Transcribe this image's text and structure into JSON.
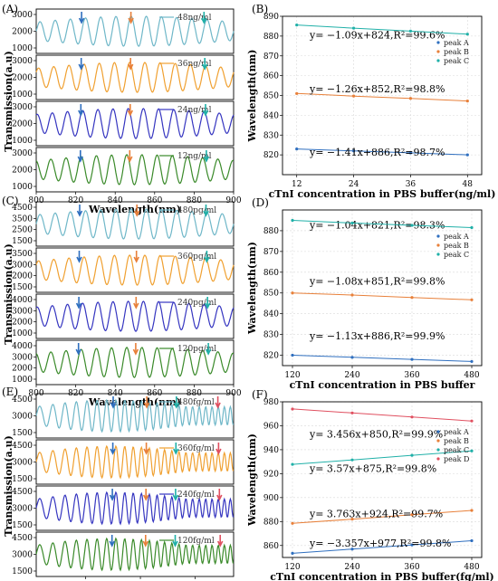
{
  "panels": [
    {
      "id": "A",
      "label": "(A)",
      "ylabel": "Transmission(a.u)",
      "xlabel": "Wavelength(nm)",
      "xticks": [
        800,
        820,
        840,
        860,
        880,
        900
      ],
      "spectra": [
        {
          "conc": "48ng/ml",
          "color": "#6fb7c8",
          "yticks": [
            1000,
            2000,
            3000
          ]
        },
        {
          "conc": "36ng/ml",
          "color": "#f0a030",
          "yticks": [
            1000,
            2000,
            3000
          ]
        },
        {
          "conc": "24ng/ml",
          "color": "#3535c0",
          "yticks": [
            1000,
            2000,
            3000
          ]
        },
        {
          "conc": "12ng/ml",
          "color": "#3a8a2a",
          "yticks": [
            1000,
            2000,
            3000
          ]
        }
      ]
    },
    {
      "id": "C",
      "label": "(C)",
      "ylabel": "Transmission(a.u)",
      "xlabel": "Wavelength(nm)",
      "xticks": [
        800,
        820,
        840,
        860,
        880,
        900
      ],
      "spectra": [
        {
          "conc": "480pg/ml",
          "color": "#6fb7c8",
          "yticks": [
            1500,
            2500,
            3500,
            4500
          ]
        },
        {
          "conc": "360pg/ml",
          "color": "#f0a030",
          "yticks": [
            1500,
            2000,
            3000,
            3500
          ]
        },
        {
          "conc": "240pg/ml",
          "color": "#3535c0",
          "yticks": [
            1000,
            2000,
            3000,
            4000
          ]
        },
        {
          "conc": "120pg/ml",
          "color": "#3a8a2a",
          "yticks": [
            1000,
            2000,
            3000,
            4000
          ]
        }
      ]
    },
    {
      "id": "E",
      "label": "(E)",
      "ylabel": "Transmission(a.u)",
      "xlabel": "Wavelength(nm)",
      "xticks": [
        850,
        900,
        950
      ],
      "spectra": [
        {
          "conc": "480fg/ml",
          "color": "#6fb7c8",
          "yticks": [
            1500,
            3000,
            4500
          ]
        },
        {
          "conc": "360fg/ml",
          "color": "#f0a030",
          "yticks": [
            1500,
            3000,
            4500
          ]
        },
        {
          "conc": "240fg/ml",
          "color": "#3535c0",
          "yticks": [
            1500,
            3000,
            4500
          ]
        },
        {
          "conc": "120fg/ml",
          "color": "#3a8a2a",
          "yticks": [
            1500,
            3000,
            4500
          ]
        }
      ]
    }
  ],
  "chart_data": [
    {
      "type": "line",
      "panel": "B",
      "xlabel": "cTnI concentration in PBS buffer(ng/ml)",
      "ylabel": "Wavelength(nm)",
      "xticks": [
        12,
        24,
        36,
        48
      ],
      "xlim": [
        9,
        51
      ],
      "ylim": [
        810,
        890
      ],
      "yticks": [
        820,
        830,
        840,
        850,
        860,
        870,
        880,
        890
      ],
      "legend_position": "right",
      "series": [
        {
          "name": "peak A",
          "color": "#2f6fbf",
          "x": [
            12,
            24,
            36,
            48
          ],
          "y": [
            823.0,
            822.0,
            821.0,
            820.0
          ],
          "equation": "y= −1.09x+824,R²=99.6%"
        },
        {
          "name": "peak B",
          "color": "#e8803a",
          "x": [
            12,
            24,
            36,
            48
          ],
          "y": [
            851.0,
            849.7,
            848.5,
            847.2
          ],
          "equation": "y= −1.26x+852,R²=98.8%"
        },
        {
          "name": "peak C",
          "color": "#20b0a8",
          "x": [
            12,
            24,
            36,
            48
          ],
          "y": [
            885.6,
            884.0,
            882.5,
            881.0
          ],
          "equation": "y= −1.41x+886,R²=98.7%"
        }
      ]
    },
    {
      "type": "line",
      "panel": "D",
      "xlabel": "cTnI concentration in PBS buffer",
      "ylabel": "Wavelength(nm)",
      "xticks": [
        120,
        240,
        360,
        480
      ],
      "xlim": [
        100,
        500
      ],
      "ylim": [
        815,
        890
      ],
      "yticks": [
        820,
        830,
        840,
        850,
        860,
        870,
        880
      ],
      "legend_position": "right",
      "series": [
        {
          "name": "peak A",
          "color": "#2f6fbf",
          "x": [
            120,
            240,
            360,
            480
          ],
          "y": [
            820.0,
            819.0,
            818.0,
            817.0
          ],
          "equation": "y= −1.04x+821,R²=98.3%"
        },
        {
          "name": "peak B",
          "color": "#e8803a",
          "x": [
            120,
            240,
            360,
            480
          ],
          "y": [
            850.0,
            849.0,
            847.8,
            846.7
          ],
          "equation": "y= −1.08x+851,R²=99.8%"
        },
        {
          "name": "peak C",
          "color": "#20b0a8",
          "x": [
            120,
            240,
            360,
            480
          ],
          "y": [
            885.0,
            883.7,
            882.6,
            881.5
          ],
          "equation": "y= −1.13x+886,R²=99.9%"
        }
      ]
    },
    {
      "type": "line",
      "panel": "F",
      "xlabel": "cTnI concentration in PBS buffer(fg/ml)",
      "ylabel": "Wavelength(nm)",
      "xticks": [
        120,
        240,
        360,
        480
      ],
      "xlim": [
        100,
        500
      ],
      "ylim": [
        850,
        980
      ],
      "yticks": [
        860,
        880,
        900,
        920,
        940,
        960,
        980
      ],
      "legend_position": "right",
      "series": [
        {
          "name": "peak A",
          "color": "#2f6fbf",
          "x": [
            120,
            240,
            360,
            480
          ],
          "y": [
            853.5,
            857.0,
            860.5,
            864.0
          ],
          "equation": "y= 3.456x+850,R²=99.9%"
        },
        {
          "name": "peak B",
          "color": "#e8803a",
          "x": [
            120,
            240,
            360,
            480
          ],
          "y": [
            878.5,
            882.0,
            885.7,
            889.3
          ],
          "equation": "y= 3.57x+875,R²=99.8%"
        },
        {
          "name": "peak C",
          "color": "#20b0a8",
          "x": [
            120,
            240,
            360,
            480
          ],
          "y": [
            927.8,
            931.5,
            935.3,
            939.0
          ],
          "equation": "y= 3.763x+924,R²=99.7%"
        },
        {
          "name": "peak D",
          "color": "#e05060",
          "x": [
            120,
            240,
            360,
            480
          ],
          "y": [
            974.0,
            970.7,
            967.3,
            964.0
          ],
          "equation": "y= −3.357x+977,R²=99.8%"
        }
      ]
    }
  ]
}
